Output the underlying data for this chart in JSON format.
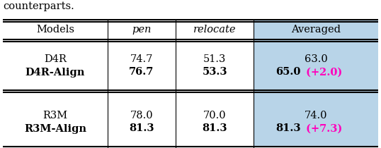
{
  "title_text": "counterparts.",
  "header": [
    "Models",
    "pen",
    "relocate",
    "Averaged"
  ],
  "rows": [
    {
      "model": "D4R",
      "pen": "74.7",
      "relocate": "51.3",
      "avg": "63.0",
      "delta": "",
      "bold": false
    },
    {
      "model": "D4R-Align",
      "pen": "76.7",
      "relocate": "53.3",
      "avg": "65.0",
      "delta": "(+2.0)",
      "bold": true
    },
    {
      "model": "R3M",
      "pen": "78.0",
      "relocate": "70.0",
      "avg": "74.0",
      "delta": "",
      "bold": false
    },
    {
      "model": "R3M-Align",
      "pen": "81.3",
      "relocate": "81.3",
      "avg": "81.3",
      "delta": "(+7.3)",
      "bold": true
    }
  ],
  "highlight_color": "#b8d4e8",
  "magenta_color": "#ff00bb",
  "bg_color": "#ffffff",
  "text_color": "#000000",
  "figsize": [
    5.38,
    2.1
  ],
  "dpi": 100
}
